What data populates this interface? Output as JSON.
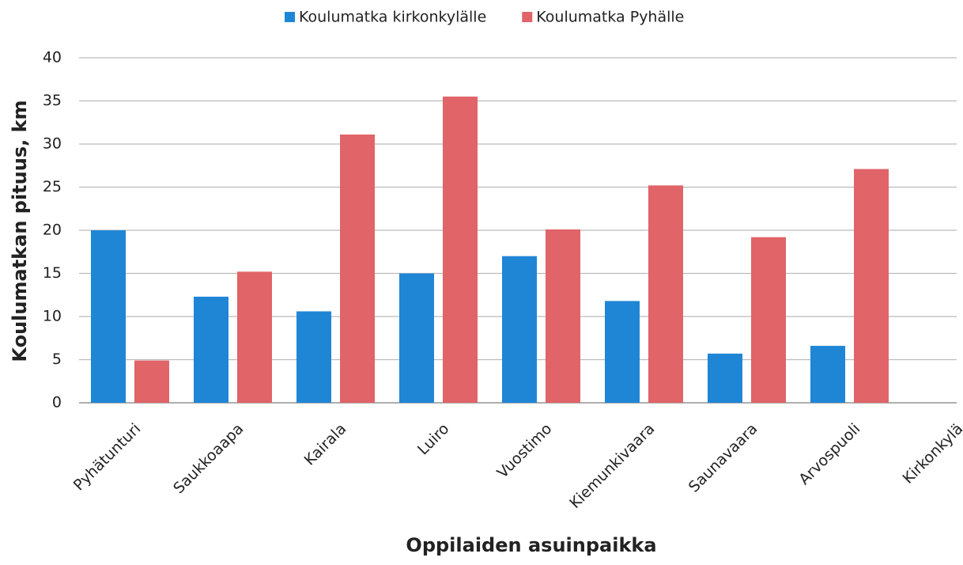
{
  "chart_data": {
    "type": "bar",
    "xlabel": "Oppilaiden asuinpaikka",
    "ylabel": "Koulumatkan pituus, km",
    "categories": [
      "Pyhätunturi",
      "Saukkoaapa",
      "Kairala",
      "Luiro",
      "Vuostimo",
      "Kiemunkivaara",
      "Saunavaara",
      "Arvospuoli",
      "Kirkonkylä"
    ],
    "series": [
      {
        "name": "Koulumatka kirkonkylälle",
        "color": "#1f86d6",
        "values": [
          20,
          12.3,
          10.6,
          15,
          17,
          11.8,
          5.7,
          6.6,
          null
        ]
      },
      {
        "name": "Koulumatka Pyhälle",
        "color": "#e06468",
        "values": [
          4.9,
          15.2,
          31.1,
          35.5,
          20.1,
          25.2,
          19.2,
          27.1,
          null
        ]
      }
    ],
    "ylim": [
      0,
      40
    ],
    "yticks": [
      0,
      5,
      10,
      15,
      20,
      25,
      30,
      35,
      40
    ],
    "grid": true,
    "legend": "top"
  }
}
